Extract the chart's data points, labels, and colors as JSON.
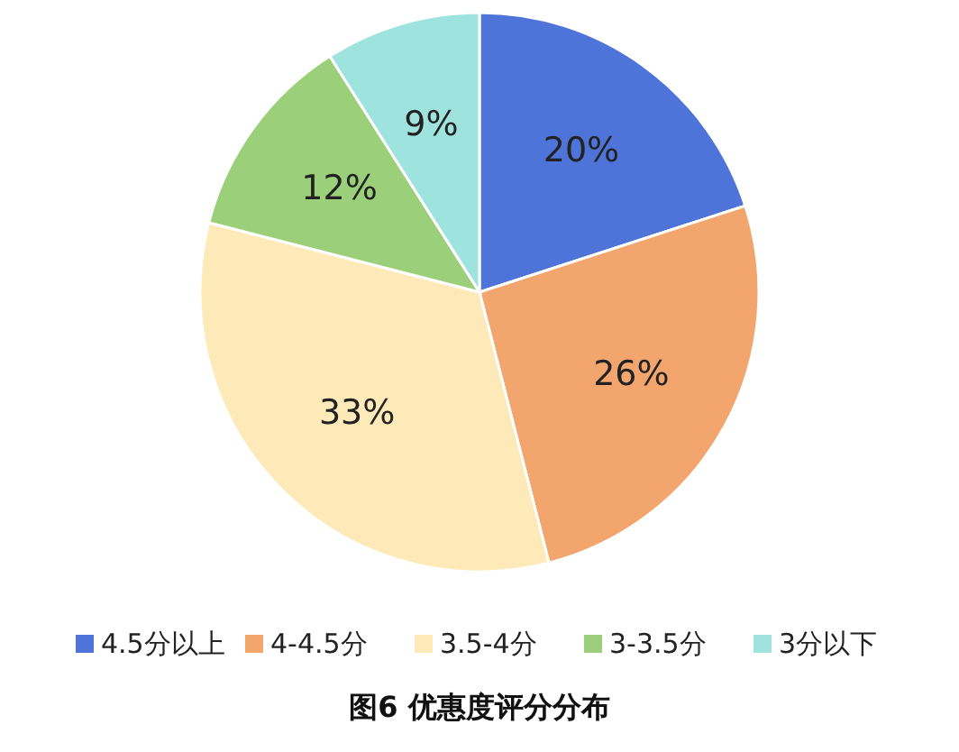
{
  "chart_data": {
    "type": "pie",
    "title": "图6 优惠度评分分布",
    "categories": [
      "4.5分以上",
      "4-4.5分",
      "3.5-4分",
      "3-3.5分",
      "3分以下"
    ],
    "values": [
      20,
      26,
      33,
      12,
      9
    ],
    "colors": [
      "#4f74d9",
      "#f2a66e",
      "#feeab9",
      "#9ccf7a",
      "#9fe3df"
    ],
    "value_labels": [
      "20%",
      "26%",
      "33%",
      "12%",
      "9%"
    ],
    "legend": "bottom"
  }
}
